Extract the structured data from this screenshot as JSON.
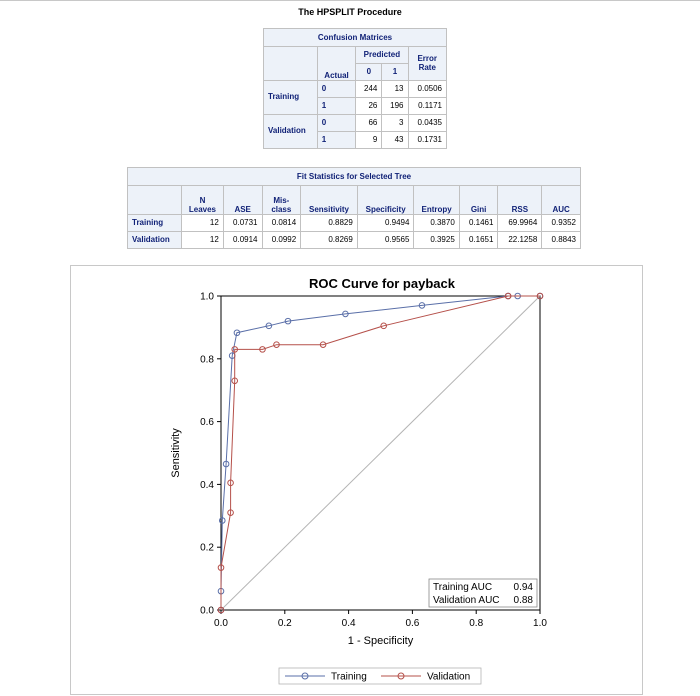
{
  "page": {
    "title": "The HPSPLIT Procedure"
  },
  "confusion": {
    "caption": "Confusion Matrices",
    "predicted_label": "Predicted",
    "actual_label": "Actual",
    "pred_col0": "0",
    "pred_col1": "1",
    "error_label_line1": "Error",
    "error_label_line2": "Rate",
    "rows": [
      {
        "group": "Training",
        "actual": "0",
        "p0": "244",
        "p1": "13",
        "err": "0.0506"
      },
      {
        "group": "",
        "actual": "1",
        "p0": "26",
        "p1": "196",
        "err": "0.1171"
      },
      {
        "group": "Validation",
        "actual": "0",
        "p0": "66",
        "p1": "3",
        "err": "0.0435"
      },
      {
        "group": "",
        "actual": "1",
        "p0": "9",
        "p1": "43",
        "err": "0.1731"
      }
    ]
  },
  "fitstats": {
    "caption": "Fit Statistics for Selected Tree",
    "headers": {
      "n_leaves_1": "N",
      "n_leaves_2": "Leaves",
      "ase": "ASE",
      "misclass_1": "Mis-",
      "misclass_2": "class",
      "sensitivity": "Sensitivity",
      "specificity": "Specificity",
      "entropy": "Entropy",
      "gini": "Gini",
      "rss": "RSS",
      "auc": "AUC"
    },
    "rows": [
      {
        "label": "Training",
        "n": "12",
        "ase": "0.0731",
        "mis": "0.0814",
        "sens": "0.8829",
        "spec": "0.9494",
        "ent": "0.3870",
        "gini": "0.1461",
        "rss": "69.9964",
        "auc": "0.9352"
      },
      {
        "label": "Validation",
        "n": "12",
        "ase": "0.0914",
        "mis": "0.0992",
        "sens": "0.8269",
        "spec": "0.9565",
        "ent": "0.3925",
        "gini": "0.1651",
        "rss": "22.1258",
        "auc": "0.8843"
      }
    ]
  },
  "chart_data": {
    "type": "line",
    "title": "ROC Curve for payback",
    "xlabel": "1 - Specificity",
    "ylabel": "Sensitivity",
    "xlim": [
      0,
      1
    ],
    "ylim": [
      0,
      1
    ],
    "xticks": [
      "0.0",
      "0.2",
      "0.4",
      "0.6",
      "0.8",
      "1.0"
    ],
    "yticks": [
      "0.0",
      "0.2",
      "0.4",
      "0.6",
      "0.8",
      "1.0"
    ],
    "grid": false,
    "diagonal_reference": true,
    "legend_position": "bottom",
    "inset": {
      "position": "bottom-right",
      "lines": [
        {
          "label": "Training AUC",
          "value": "0.94"
        },
        {
          "label": "Validation AUC",
          "value": "0.88"
        }
      ]
    },
    "series": [
      {
        "name": "Training",
        "color": "#5a6fa8",
        "points": [
          [
            0.0,
            0.0
          ],
          [
            0.0,
            0.06
          ],
          [
            0.004,
            0.285
          ],
          [
            0.016,
            0.465
          ],
          [
            0.035,
            0.81
          ],
          [
            0.05,
            0.883
          ],
          [
            0.15,
            0.905
          ],
          [
            0.21,
            0.92
          ],
          [
            0.39,
            0.943
          ],
          [
            0.63,
            0.97
          ],
          [
            0.9,
            1.0
          ],
          [
            0.93,
            1.0
          ],
          [
            1.0,
            1.0
          ]
        ]
      },
      {
        "name": "Validation",
        "color": "#b5504a",
        "points": [
          [
            0.0,
            0.0
          ],
          [
            0.0,
            0.135
          ],
          [
            0.03,
            0.31
          ],
          [
            0.03,
            0.405
          ],
          [
            0.043,
            0.73
          ],
          [
            0.043,
            0.83
          ],
          [
            0.13,
            0.83
          ],
          [
            0.174,
            0.845
          ],
          [
            0.32,
            0.845
          ],
          [
            0.51,
            0.905
          ],
          [
            0.9,
            1.0
          ],
          [
            1.0,
            1.0
          ]
        ]
      }
    ]
  }
}
